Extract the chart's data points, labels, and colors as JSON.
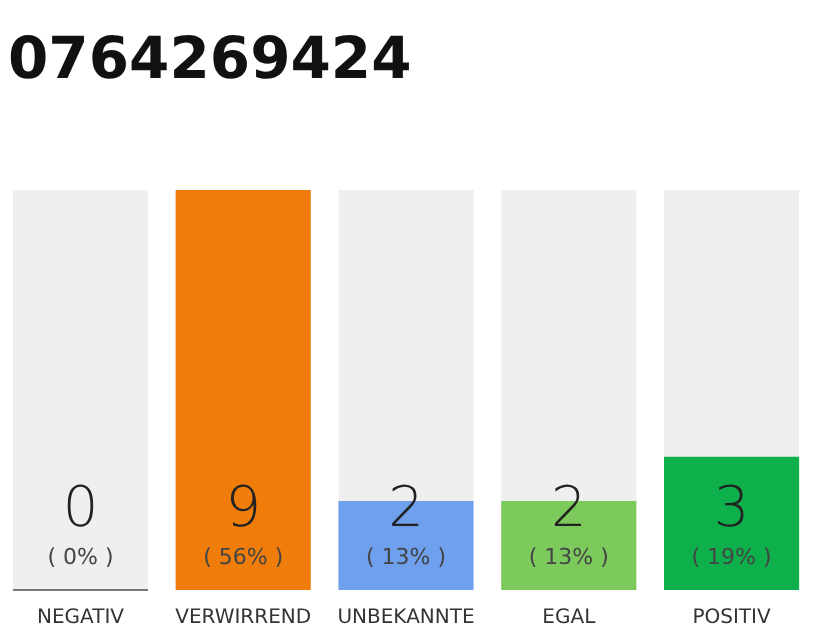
{
  "chart_data": {
    "type": "bar",
    "title": "0764269424",
    "categories": [
      "NEGATIV",
      "VERWIRREND",
      "UNBEKANNTE",
      "EGAL",
      "POSITIV"
    ],
    "values": [
      0,
      9,
      2,
      2,
      3
    ],
    "colors": [
      "#404040",
      "#f07d0a",
      "#6fa0ee",
      "#7dca5c",
      "#0db04b"
    ],
    "ylim": [
      0,
      9
    ],
    "tick_labels": "x",
    "data_labels": true,
    "annotations": [
      "( 0% )",
      "( 56% )",
      "( 13% )",
      "( 13% )",
      "( 19% )"
    ]
  }
}
